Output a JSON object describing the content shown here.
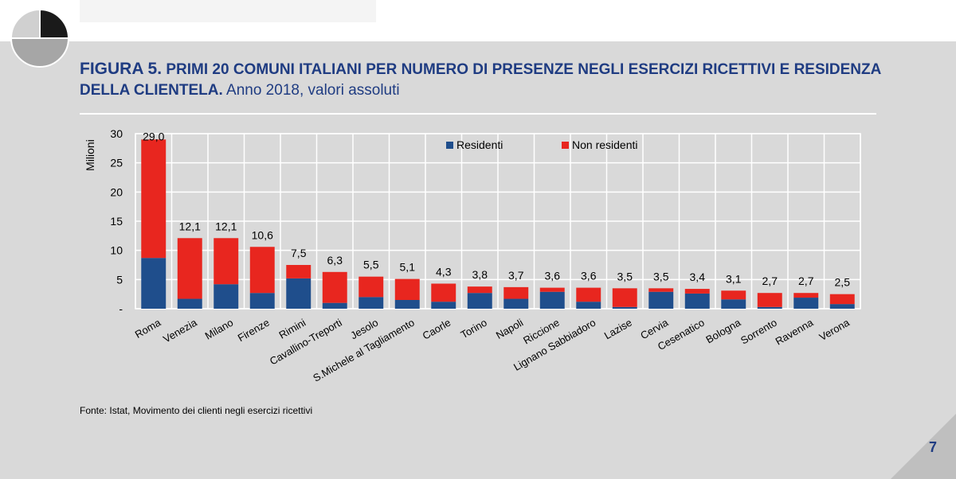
{
  "title": {
    "figure": "FIGURA 5.",
    "heading": "PRIMI 20 COMUNI ITALIANI PER NUMERO DI PRESENZE NEGLI ESERCIZI RICETTIVI E RESIDENZA DELLA CLIENTELA.",
    "subheading": "Anno 2018, valori assoluti"
  },
  "source": "Fonte: Istat, Movimento dei clienti negli esercizi ricettivi",
  "page_number": "7",
  "colors": {
    "residenti": "#1f4e8c",
    "non_residenti": "#e8261f",
    "title": "#1f3c82"
  },
  "chart_data": {
    "type": "bar",
    "stacked": true,
    "ylabel": "Milioni",
    "ylim": [
      0,
      30
    ],
    "yticks": [
      0,
      5,
      10,
      15,
      20,
      25,
      30
    ],
    "ytick_labels": [
      "-",
      "5",
      "10",
      "15",
      "20",
      "25",
      "30"
    ],
    "legend_position": "top-center",
    "grid": true,
    "categories": [
      "Roma",
      "Venezia",
      "Milano",
      "Firenze",
      "Rimini",
      "Cavallino-Treporti",
      "Jesolo",
      "S.Michele al Tagliamento",
      "Caorle",
      "Torino",
      "Napoli",
      "Riccione",
      "Lignano Sabbiadoro",
      "Lazise",
      "Cervia",
      "Cesenatico",
      "Bologna",
      "Sorrento",
      "Ravenna",
      "Verona"
    ],
    "totals": [
      29.0,
      12.1,
      12.1,
      10.6,
      7.5,
      6.3,
      5.5,
      5.1,
      4.3,
      3.8,
      3.7,
      3.6,
      3.6,
      3.5,
      3.5,
      3.4,
      3.1,
      2.7,
      2.7,
      2.5
    ],
    "total_labels": [
      "29,0",
      "12,1",
      "12,1",
      "10,6",
      "7,5",
      "6,3",
      "5,5",
      "5,1",
      "4,3",
      "3,8",
      "3,7",
      "3,6",
      "3,6",
      "3,5",
      "3,5",
      "3,4",
      "3,1",
      "2,7",
      "2,7",
      "2,5"
    ],
    "series": [
      {
        "name": "Residenti",
        "values": [
          8.7,
          1.7,
          4.2,
          2.7,
          5.2,
          1.0,
          2.0,
          1.5,
          1.2,
          2.7,
          1.7,
          2.9,
          1.2,
          0.3,
          2.9,
          2.6,
          1.6,
          0.3,
          1.9,
          0.8
        ]
      },
      {
        "name": "Non residenti",
        "values": [
          20.3,
          10.4,
          7.9,
          7.9,
          2.3,
          5.3,
          3.5,
          3.6,
          3.1,
          1.1,
          2.0,
          0.7,
          2.4,
          3.2,
          0.6,
          0.8,
          1.5,
          2.4,
          0.8,
          1.7
        ]
      }
    ]
  }
}
